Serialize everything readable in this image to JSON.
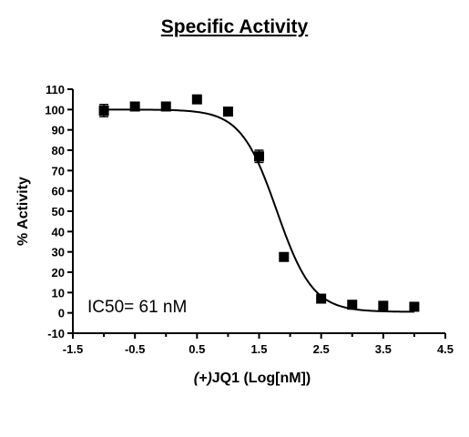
{
  "chart_data": {
    "type": "scatter",
    "title": "Specific Activity",
    "xlabel_prefix": "(+)",
    "xlabel_rest": "JQ1 (Log[nM])",
    "ylabel": "% Activity",
    "xlim": [
      -1.5,
      4.5
    ],
    "ylim": [
      -10,
      110
    ],
    "xticks": [
      -1.5,
      -0.5,
      0.5,
      1.5,
      2.5,
      3.5,
      4.5
    ],
    "xtick_labels": [
      "-1.5",
      "-0.5",
      "0.5",
      "1.5",
      "2.5",
      "3.5",
      "4.5"
    ],
    "yticks": [
      -10,
      0,
      10,
      20,
      30,
      40,
      50,
      60,
      70,
      80,
      90,
      100,
      110
    ],
    "ytick_labels": [
      "-10",
      "0",
      "10",
      "20",
      "30",
      "40",
      "50",
      "60",
      "70",
      "80",
      "90",
      "100",
      "110"
    ],
    "grid": false,
    "annotation": "IC50= 61 nM",
    "points": [
      {
        "x": -1.0,
        "y": 99.5,
        "err": 3
      },
      {
        "x": -0.5,
        "y": 101.5,
        "err": 1
      },
      {
        "x": 0.0,
        "y": 101.5,
        "err": 1
      },
      {
        "x": 0.5,
        "y": 105,
        "err": 2
      },
      {
        "x": 1.0,
        "y": 99,
        "err": 1
      },
      {
        "x": 1.5,
        "y": 77,
        "err": 3
      },
      {
        "x": 1.9,
        "y": 27.5,
        "err": 1.5
      },
      {
        "x": 2.5,
        "y": 7,
        "err": 1
      },
      {
        "x": 3.0,
        "y": 4,
        "err": 1
      },
      {
        "x": 3.5,
        "y": 3.5,
        "err": 1
      },
      {
        "x": 4.0,
        "y": 3,
        "err": 1
      }
    ],
    "fit": {
      "model": "four-parameter-logistic",
      "top": 100,
      "bottom": 0.5,
      "log_ic50": 1.785,
      "hill_slope": -1.5
    }
  }
}
